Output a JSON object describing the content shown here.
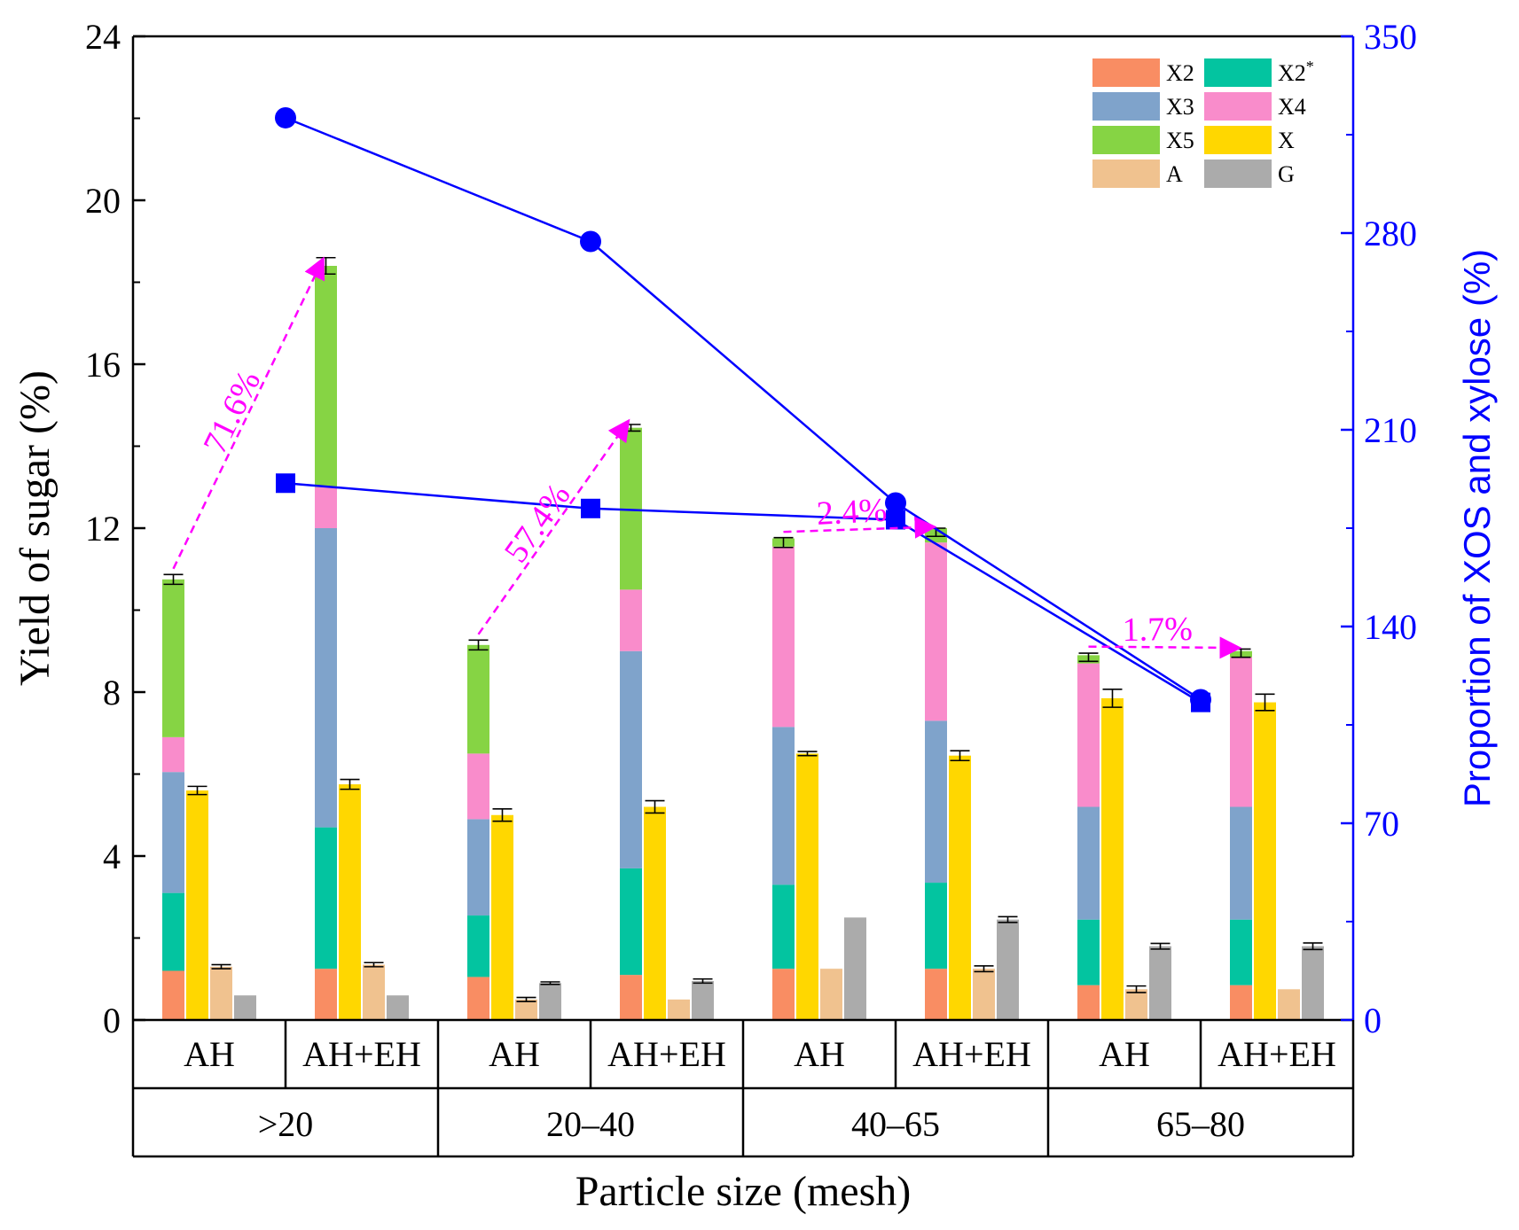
{
  "chart_data": {
    "type": "bar",
    "title": "",
    "xlabel": "Particle size (mesh)",
    "ylabel": "Yield of sugar (%)",
    "y2label": "Proportion of XOS and xylose (%)",
    "ylim": [
      0,
      24
    ],
    "yticks": [
      "0",
      "4",
      "8",
      "12",
      "16",
      "20",
      "24"
    ],
    "y2lim": [
      0,
      350
    ],
    "y2ticks": [
      "0",
      "70",
      "140",
      "210",
      "280",
      "350"
    ],
    "groups": [
      ">20",
      "20–40",
      "40–65",
      "65–80"
    ],
    "treatments": [
      "AH",
      "AH+EH",
      "AH",
      "AH+EH",
      "AH",
      "AH+EH",
      "AH",
      "AH+EH"
    ],
    "legend": [
      {
        "key": "X2",
        "label": "X2",
        "color": "#F98D63"
      },
      {
        "key": "X2s",
        "label": "X2",
        "sup": "*",
        "color": "#03C4A0"
      },
      {
        "key": "X3",
        "label": "X3",
        "color": "#7FA3CB"
      },
      {
        "key": "X4",
        "label": "X4",
        "color": "#F98CCB"
      },
      {
        "key": "X5",
        "label": "X5",
        "color": "#86D444"
      },
      {
        "key": "X",
        "label": "X",
        "color": "#FFD700"
      },
      {
        "key": "A",
        "label": "A",
        "color": "#F0C28F"
      },
      {
        "key": "G",
        "label": "G",
        "color": "#ABABAB"
      }
    ],
    "stacked_series": [
      {
        "key": "X2",
        "values": [
          1.2,
          1.25,
          1.05,
          1.1,
          1.25,
          1.25,
          0.85,
          0.85
        ]
      },
      {
        "key": "X2s",
        "values": [
          1.9,
          3.45,
          1.5,
          2.6,
          2.05,
          2.1,
          1.6,
          1.6
        ]
      },
      {
        "key": "X3",
        "values": [
          2.95,
          7.3,
          2.35,
          5.3,
          3.85,
          3.95,
          2.75,
          2.75
        ]
      },
      {
        "key": "X4",
        "values": [
          0.85,
          1.0,
          1.6,
          1.5,
          4.4,
          4.35,
          3.5,
          3.65
        ]
      },
      {
        "key": "X5",
        "values": [
          3.85,
          5.4,
          2.65,
          3.95,
          0.2,
          0.35,
          0.2,
          0.15
        ]
      }
    ],
    "stack_totals": [
      10.75,
      18.4,
      9.15,
      14.45,
      11.65,
      11.9,
      8.85,
      8.95
    ],
    "stack_errors": [
      0.12,
      0.2,
      0.12,
      0.08,
      0.12,
      0.1,
      0.1,
      0.1
    ],
    "single_series": [
      {
        "key": "X",
        "values": [
          5.6,
          5.75,
          5.0,
          5.2,
          6.5,
          6.45,
          7.85,
          7.75
        ],
        "errors": [
          0.1,
          0.12,
          0.15,
          0.15,
          0.05,
          0.12,
          0.22,
          0.2
        ]
      },
      {
        "key": "A",
        "values": [
          1.3,
          1.35,
          0.5,
          0.5,
          1.25,
          1.25,
          0.75,
          0.75
        ],
        "errors": [
          0.05,
          0.05,
          0.05,
          0.0,
          0.0,
          0.07,
          0.08,
          0.0
        ]
      },
      {
        "key": "G",
        "values": [
          0.6,
          0.6,
          0.9,
          0.95,
          2.5,
          2.45,
          1.8,
          1.8
        ],
        "errors": [
          0.0,
          0.0,
          0.03,
          0.05,
          0.0,
          0.07,
          0.07,
          0.08
        ]
      }
    ],
    "lines": [
      {
        "name": "circle series",
        "axis": "right",
        "marker": "circle",
        "color": "#0000FF",
        "x_groups": [
          0,
          1,
          2,
          3
        ],
        "values": [
          321,
          277,
          184,
          114
        ]
      },
      {
        "name": "square series",
        "axis": "right",
        "marker": "square",
        "color": "#0000FF",
        "x_groups": [
          0,
          1,
          2,
          3
        ],
        "values": [
          191,
          182,
          178,
          113
        ]
      }
    ],
    "annotations": [
      {
        "text": "71.6%",
        "from_bar": 0,
        "to_bar": 1
      },
      {
        "text": "57.4%",
        "from_bar": 2,
        "to_bar": 3
      },
      {
        "text": "2.4%",
        "from_bar": 4,
        "to_bar": 5
      },
      {
        "text": "1.7%",
        "from_bar": 6,
        "to_bar": 7
      }
    ],
    "colors": {
      "axis": "#000000",
      "right_axis": "#0000FF",
      "annotation": "#FF00FF"
    }
  }
}
